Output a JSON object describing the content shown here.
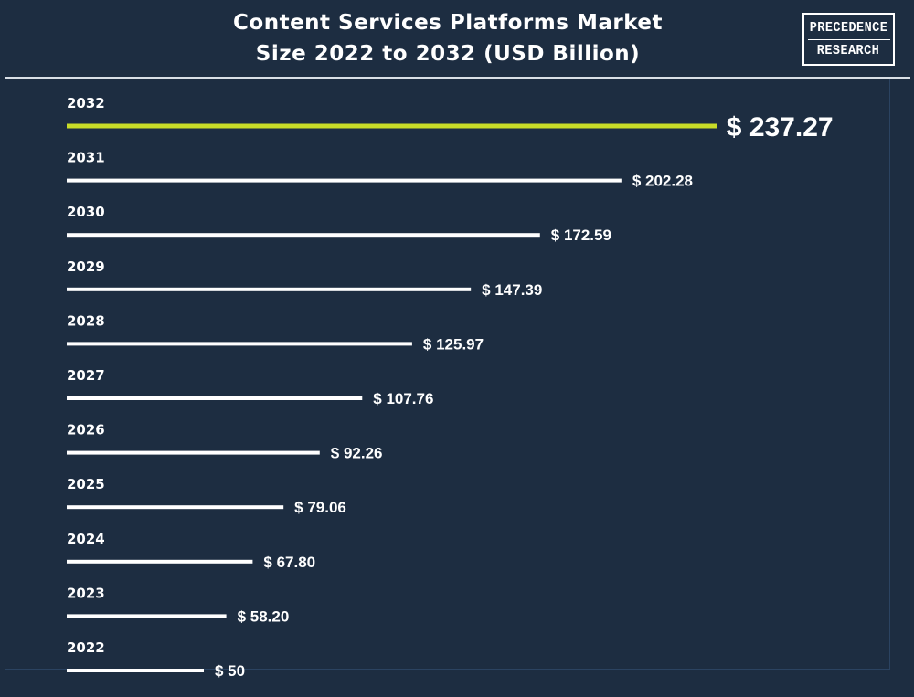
{
  "header": {
    "title_lines": [
      "Content Services Platforms Market",
      "Size 2022 to 2032 (USD Billion)"
    ]
  },
  "logo": {
    "line1": "PRECEDENCE",
    "line2": "RESEARCH"
  },
  "colors": {
    "background": "#1d2d41",
    "bar": "#ffffff",
    "highlight_bar": "#c8dc28",
    "text": "#ffffff"
  },
  "chart_data": {
    "type": "bar",
    "orientation": "horizontal",
    "title": "Content Services Platforms Market Size 2022 to 2032 (USD Billion)",
    "categories": [
      "2032",
      "2031",
      "2030",
      "2029",
      "2028",
      "2027",
      "2026",
      "2025",
      "2024",
      "2023",
      "2022"
    ],
    "values": [
      237.27,
      202.28,
      172.59,
      147.39,
      125.97,
      107.76,
      92.26,
      79.06,
      67.8,
      58.2,
      50
    ],
    "value_labels": [
      "$ 237.27",
      "$ 202.28",
      "$ 172.59",
      "$ 147.39",
      "$ 125.97",
      "$ 107.76",
      "$ 92.26",
      "$ 79.06",
      "$ 67.80",
      "$ 58.20",
      "$ 50"
    ],
    "highlight_category": "2032",
    "unit": "USD Billion",
    "grid": false,
    "legend": "none"
  }
}
